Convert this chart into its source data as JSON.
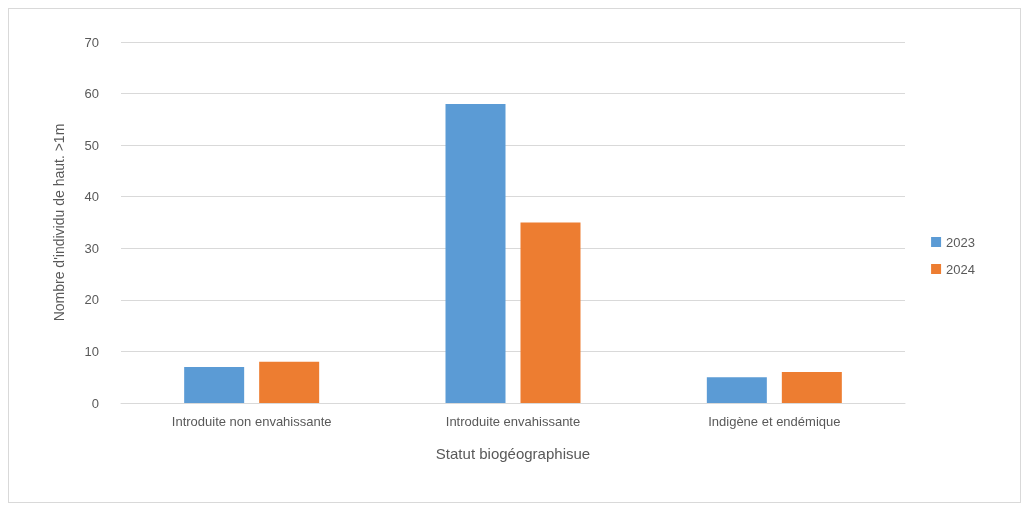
{
  "chart_data": {
    "type": "bar",
    "categories": [
      "Introduite non envahissante",
      "Introduite envahissante",
      "Indigène et endémique"
    ],
    "series": [
      {
        "name": "2023",
        "color": "#5b9bd5",
        "values": [
          7,
          58,
          5
        ]
      },
      {
        "name": "2024",
        "color": "#ed7d31",
        "values": [
          8,
          35,
          6
        ]
      }
    ],
    "xlabel": "Statut biogéographisue",
    "ylabel": "Nombre d'individu de haut. >1m",
    "ylim": [
      0,
      70
    ],
    "yticks": [
      0,
      10,
      20,
      30,
      40,
      50,
      60,
      70
    ],
    "grid": "y",
    "legend": "right"
  }
}
